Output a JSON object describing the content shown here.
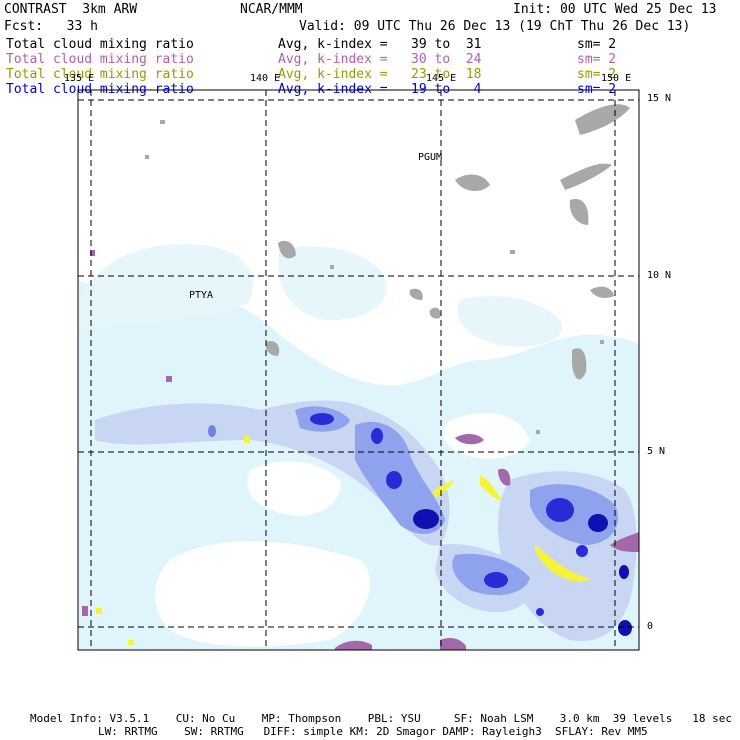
{
  "header": {
    "model": "CONTRAST  3km ARW",
    "center": "NCAR/MMM",
    "init": "Init: 00 UTC Wed 25 Dec 13",
    "fcst": "Fcst:   33 h",
    "valid": "Valid: 09 UTC Thu 26 Dec 13 (19 ChT Thu 26 Dec 13)"
  },
  "fields": [
    {
      "name": "Total cloud mixing ratio",
      "stat": "Avg, k-index =   39 to  31",
      "sm": "sm= 2",
      "color": "#000000"
    },
    {
      "name": "Total cloud mixing ratio",
      "stat": "Avg, k-index =   30 to  24",
      "sm": "sm= 2",
      "color": "#b060b0"
    },
    {
      "name": "Total cloud mixing ratio",
      "stat": "Avg, k-index =   23 to  18",
      "sm": "sm= 2",
      "color": "#9a9a00"
    },
    {
      "name": "Total cloud mixing ratio",
      "stat": "Avg, k-index =   19 to   4",
      "sm": "sm= 2",
      "color": "#0000dd"
    }
  ],
  "map": {
    "lon_labels": [
      "135 E",
      "140 E",
      "145 E",
      "150 E"
    ],
    "lat_labels": [
      "15 N",
      "10 N",
      "5 N",
      "0"
    ],
    "stations": [
      "PGUM",
      "PTYA"
    ]
  },
  "footer": {
    "line1": "Model Info: V3.5.1    CU: No Cu    MP: Thompson    PBL: YSU     SF: Noah LSM    3.0 km  39 levels   18 sec",
    "line2": "LW: RRTMG    SW: RRTMG   DIFF: simple KM: 2D Smagor DAMP: Rayleigh3  SFLAY: Rev MM5"
  },
  "colors": {
    "light_cyan": "#dff4fb",
    "pale_blue": "#c8d6f4",
    "mid_blue": "#8fa2ee",
    "deep_blue": "#2a2ad6",
    "navy": "#1010b0",
    "gray": "#a8a8a8",
    "purple": "#a468a8",
    "yellow": "#f4f43a"
  }
}
